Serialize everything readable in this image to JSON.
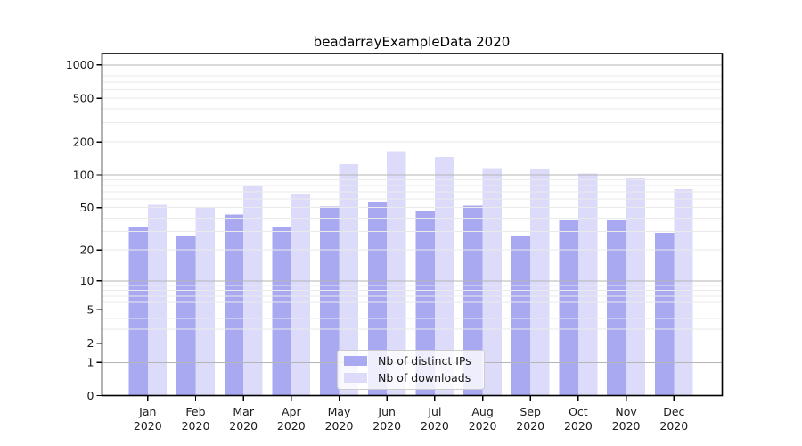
{
  "chart_data": {
    "type": "bar",
    "title": "beadarrayExampleData 2020",
    "categories": [
      "Jan",
      "Feb",
      "Mar",
      "Apr",
      "May",
      "Jun",
      "Jul",
      "Aug",
      "Sep",
      "Oct",
      "Nov",
      "Dec"
    ],
    "category_year_label": "2020",
    "series": [
      {
        "name": "Nb of distinct IPs",
        "color": "#a9a9f2",
        "values": [
          33,
          27,
          43,
          33,
          51,
          56,
          46,
          52,
          27,
          38,
          38,
          29
        ]
      },
      {
        "name": "Nb of downloads",
        "color": "#dcdcfa",
        "values": [
          53,
          50,
          79,
          67,
          125,
          165,
          146,
          115,
          112,
          103,
          94,
          74
        ]
      }
    ],
    "y_axis": {
      "scale": "log10(value+1)",
      "ticks": [
        0,
        1,
        2,
        5,
        10,
        20,
        50,
        100,
        200,
        500,
        1000
      ],
      "major_gridlines": [
        1,
        10,
        100,
        1000
      ],
      "minor_gridline_decades": [
        1,
        10,
        100
      ],
      "range": [
        0,
        1000
      ]
    },
    "legend": {
      "position": "inside-bottom-center"
    },
    "grid": true,
    "grid_over_bars": true
  },
  "colors": {
    "grid_major": "#b5b5b5",
    "grid_minor": "#eaeaea",
    "spine": "#000000",
    "tick_text": "#1a1a1a",
    "legend_border": "#cccccc",
    "legend_fill": "rgba(255,255,255,0.8)"
  }
}
